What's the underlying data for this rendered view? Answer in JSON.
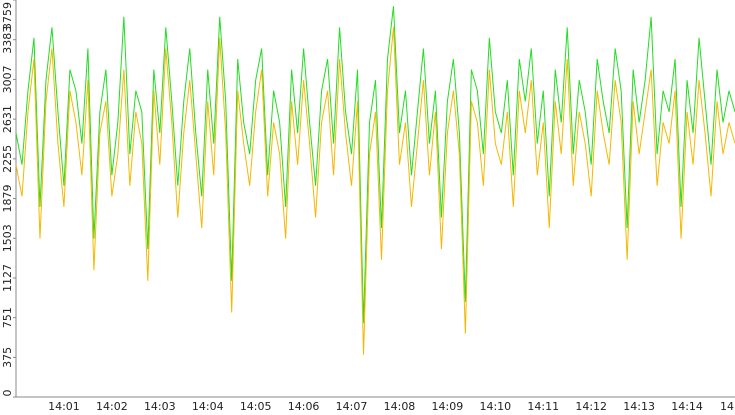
{
  "chart_data": {
    "type": "line",
    "categories": [
      null,
      null,
      null,
      null,
      null,
      null,
      null,
      null,
      "14:01",
      null,
      null,
      null,
      null,
      null,
      null,
      null,
      "14:02",
      null,
      null,
      null,
      null,
      null,
      null,
      null,
      "14:03",
      null,
      null,
      null,
      null,
      null,
      null,
      null,
      "14:04",
      null,
      null,
      null,
      null,
      null,
      null,
      null,
      "14:05",
      null,
      null,
      null,
      null,
      null,
      null,
      null,
      "14:06",
      null,
      null,
      null,
      null,
      null,
      null,
      null,
      "14:07",
      null,
      null,
      null,
      null,
      null,
      null,
      null,
      "14:08",
      null,
      null,
      null,
      null,
      null,
      null,
      null,
      "14:09",
      null,
      null,
      null,
      null,
      null,
      null,
      null,
      "14:10",
      null,
      null,
      null,
      null,
      null,
      null,
      null,
      "14:11",
      null,
      null,
      null,
      null,
      null,
      null,
      null,
      "14:12",
      null,
      null,
      null,
      null,
      null,
      null,
      null,
      "14:13",
      null,
      null,
      null,
      null,
      null,
      null,
      null,
      "14:14",
      null,
      null,
      null,
      null,
      null,
      null,
      null,
      "14"
    ],
    "series": [
      {
        "color": "#22dd22",
        "values": [
          2500,
          2200,
          2900,
          3400,
          1800,
          3000,
          3500,
          2700,
          2000,
          3100,
          2900,
          2400,
          3300,
          1500,
          2700,
          3100,
          2100,
          2600,
          3600,
          2300,
          2900,
          2700,
          1400,
          3100,
          2500,
          3500,
          2800,
          2000,
          2800,
          3300,
          2500,
          1900,
          3100,
          2400,
          3600,
          2800,
          1100,
          3200,
          2600,
          2300,
          3000,
          3300,
          2100,
          2900,
          2600,
          1800,
          3100,
          2500,
          3300,
          2600,
          2000,
          2900,
          3200,
          2400,
          3500,
          2700,
          2300,
          3100,
          700,
          2600,
          3000,
          1600,
          3200,
          3700,
          2500,
          2900,
          2100,
          2700,
          3300,
          2400,
          2900,
          1700,
          2800,
          3200,
          2500,
          900,
          3100,
          2900,
          2300,
          3400,
          2700,
          2500,
          3000,
          2100,
          3200,
          2800,
          3300,
          2400,
          2900,
          1900,
          3100,
          2600,
          3500,
          2300,
          3000,
          2700,
          2200,
          3200,
          2800,
          2500,
          3300,
          2900,
          1600,
          3100,
          2600,
          3000,
          3600,
          2300,
          2900,
          2700,
          3200,
          1800,
          3000,
          2500,
          3400,
          2800,
          2200,
          3100,
          2600,
          2900,
          2700
        ]
      },
      {
        "color": "#f5b800",
        "values": [
          2200,
          1900,
          2700,
          3200,
          1500,
          2800,
          3300,
          2400,
          1800,
          2900,
          2600,
          2100,
          3000,
          1200,
          2500,
          2800,
          1900,
          2300,
          3100,
          2000,
          2700,
          2400,
          1100,
          2900,
          2200,
          3300,
          2600,
          1700,
          2500,
          3000,
          2300,
          1600,
          2800,
          2100,
          3400,
          2500,
          800,
          2900,
          2400,
          2000,
          2700,
          3100,
          1900,
          2600,
          2300,
          1500,
          2800,
          2200,
          3000,
          2400,
          1700,
          2600,
          2900,
          2100,
          3200,
          2500,
          2000,
          2800,
          400,
          2300,
          2700,
          1300,
          2900,
          3500,
          2200,
          2600,
          1800,
          2400,
          3000,
          2100,
          2700,
          1400,
          2500,
          2900,
          2300,
          600,
          2800,
          2600,
          2000,
          3100,
          2400,
          2200,
          2700,
          1800,
          2900,
          2500,
          3000,
          2100,
          2600,
          1600,
          2800,
          2300,
          3200,
          2000,
          2700,
          2400,
          1900,
          2900,
          2500,
          2200,
          3000,
          2600,
          1300,
          2800,
          2300,
          2700,
          3100,
          2000,
          2600,
          2400,
          2900,
          1500,
          2700,
          2200,
          3000,
          2500,
          1900,
          2800,
          2300,
          2600,
          2400
        ]
      }
    ],
    "ylim": [
      0,
      3759
    ],
    "yticks": [
      0,
      375,
      751,
      1127,
      1503,
      1879,
      2255,
      2631,
      3007,
      3383,
      3759
    ],
    "grid": false
  }
}
